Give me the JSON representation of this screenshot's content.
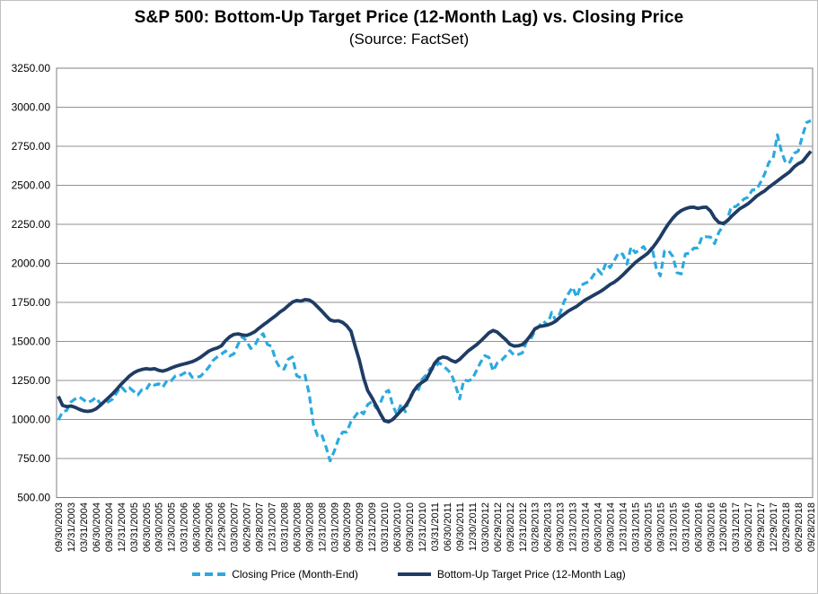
{
  "colors": {
    "closing_price": "#2BA9E0",
    "target_price": "#1F3C64",
    "gridline": "#929292",
    "plot_border": "#7f7f7f",
    "text": "#000000",
    "frame_border": "#bfbfbf"
  },
  "chart_data": {
    "type": "line",
    "title": "S&P 500: Bottom-Up Target Price (12-Month Lag) vs. Closing Price",
    "subtitle": "(Source: FactSet)",
    "grid": "horizontal",
    "legend_position": "bottom",
    "x_axis": {
      "frequency": "monthly",
      "start": "09/30/2003",
      "end": "09/28/2018",
      "points_per_tick": 3,
      "tick_labels": [
        "09/30/2003",
        "12/31/2003",
        "03/31/2004",
        "06/30/2004",
        "09/30/2004",
        "12/31/2004",
        "03/31/2005",
        "06/30/2005",
        "09/30/2005",
        "12/30/2005",
        "03/31/2006",
        "06/30/2006",
        "09/29/2006",
        "12/29/2006",
        "03/30/2007",
        "06/29/2007",
        "09/28/2007",
        "12/31/2007",
        "03/31/2008",
        "06/30/2008",
        "09/30/2008",
        "12/31/2008",
        "03/31/2009",
        "06/30/2009",
        "09/30/2009",
        "12/31/2009",
        "03/31/2010",
        "06/30/2010",
        "09/30/2010",
        "12/31/2010",
        "03/31/2011",
        "06/30/2011",
        "09/30/2011",
        "12/30/2011",
        "03/30/2012",
        "06/29/2012",
        "09/28/2012",
        "12/31/2012",
        "03/28/2013",
        "06/28/2013",
        "09/30/2013",
        "12/31/2013",
        "03/31/2014",
        "06/30/2014",
        "09/30/2014",
        "12/31/2014",
        "03/31/2015",
        "06/30/2015",
        "09/30/2015",
        "12/31/2015",
        "03/31/2016",
        "06/30/2016",
        "09/30/2016",
        "12/30/2016",
        "03/31/2017",
        "06/30/2017",
        "09/29/2017",
        "12/29/2017",
        "03/29/2018",
        "06/29/2018",
        "09/28/2018"
      ]
    },
    "y_axis": {
      "min": 500,
      "max": 3250,
      "step": 250,
      "tick_labels": [
        "3250.00",
        "3000.00",
        "2750.00",
        "2500.00",
        "2250.00",
        "2000.00",
        "1750.00",
        "1500.00",
        "1250.00",
        "1000.00",
        "750.00",
        "500.00"
      ]
    },
    "series": [
      {
        "name": "Closing Price (Month-End)",
        "style": "dashed",
        "color": "#2BA9E0",
        "values": [
          995.97,
          1050.71,
          1058.2,
          1111.92,
          1131.13,
          1144.94,
          1126.21,
          1107.3,
          1120.68,
          1140.84,
          1101.72,
          1104.24,
          1114.58,
          1130.2,
          1173.82,
          1211.92,
          1181.27,
          1203.6,
          1180.59,
          1156.85,
          1191.5,
          1191.33,
          1234.18,
          1220.33,
          1228.81,
          1207.01,
          1249.48,
          1248.29,
          1280.08,
          1280.66,
          1294.87,
          1310.61,
          1270.09,
          1270.2,
          1276.66,
          1303.82,
          1335.85,
          1377.94,
          1400.63,
          1418.3,
          1438.24,
          1406.82,
          1420.86,
          1482.37,
          1530.62,
          1503.35,
          1455.27,
          1473.99,
          1526.75,
          1549.38,
          1481.14,
          1468.36,
          1378.55,
          1330.63,
          1322.7,
          1385.59,
          1400.38,
          1280.0,
          1267.38,
          1282.83,
          1166.36,
          968.75,
          896.24,
          903.25,
          825.88,
          735.09,
          797.87,
          872.81,
          919.14,
          919.32,
          987.48,
          1020.62,
          1057.08,
          1036.19,
          1095.63,
          1115.1,
          1073.87,
          1104.49,
          1169.43,
          1186.69,
          1089.41,
          1030.71,
          1101.6,
          1049.33,
          1141.2,
          1183.26,
          1180.55,
          1257.64,
          1286.12,
          1327.22,
          1325.83,
          1363.61,
          1345.2,
          1320.64,
          1292.28,
          1218.89,
          1131.42,
          1253.3,
          1246.96,
          1257.6,
          1312.41,
          1365.68,
          1408.47,
          1397.91,
          1310.33,
          1362.16,
          1379.32,
          1406.58,
          1440.67,
          1412.16,
          1416.18,
          1426.19,
          1498.11,
          1514.68,
          1569.19,
          1597.57,
          1630.74,
          1606.28,
          1685.73,
          1632.97,
          1681.55,
          1756.54,
          1805.81,
          1848.36,
          1782.59,
          1859.45,
          1872.34,
          1883.95,
          1923.57,
          1960.23,
          1930.67,
          2003.37,
          1972.29,
          2018.05,
          2067.56,
          2058.9,
          1994.99,
          2104.5,
          2067.89,
          2085.51,
          2107.39,
          2063.11,
          2103.84,
          1972.18,
          1920.03,
          2079.36,
          2080.41,
          2043.94,
          1940.24,
          1932.23,
          2059.74,
          2065.3,
          2096.95,
          2098.86,
          2173.6,
          2170.95,
          2168.27,
          2126.15,
          2198.81,
          2238.83,
          2278.87,
          2363.64,
          2362.72,
          2384.2,
          2411.8,
          2423.41,
          2470.3,
          2471.65,
          2519.36,
          2575.26,
          2647.58,
          2673.61,
          2823.81,
          2713.83,
          2640.87,
          2648.05,
          2705.27,
          2718.37,
          2816.29,
          2901.52,
          2913.98
        ]
      },
      {
        "name": "Bottom-Up Target Price (12-Month Lag)",
        "style": "solid",
        "color": "#1F3C64",
        "values": [
          1148,
          1090,
          1082,
          1086,
          1078,
          1065,
          1055,
          1052,
          1056,
          1068,
          1090,
          1115,
          1140,
          1165,
          1195,
          1225,
          1252,
          1278,
          1298,
          1312,
          1320,
          1325,
          1322,
          1325,
          1315,
          1310,
          1318,
          1330,
          1340,
          1348,
          1355,
          1362,
          1370,
          1382,
          1398,
          1418,
          1438,
          1450,
          1458,
          1472,
          1505,
          1530,
          1545,
          1548,
          1542,
          1538,
          1548,
          1562,
          1585,
          1605,
          1625,
          1645,
          1665,
          1688,
          1706,
          1730,
          1752,
          1762,
          1758,
          1768,
          1765,
          1748,
          1722,
          1695,
          1665,
          1638,
          1630,
          1632,
          1622,
          1600,
          1565,
          1470,
          1380,
          1268,
          1185,
          1140,
          1090,
          1038,
          992,
          985,
          1000,
          1028,
          1058,
          1085,
          1128,
          1182,
          1218,
          1238,
          1255,
          1305,
          1360,
          1390,
          1400,
          1395,
          1378,
          1368,
          1385,
          1412,
          1438,
          1458,
          1478,
          1502,
          1528,
          1555,
          1570,
          1560,
          1535,
          1512,
          1482,
          1470,
          1472,
          1480,
          1505,
          1540,
          1580,
          1595,
          1600,
          1605,
          1615,
          1630,
          1655,
          1675,
          1695,
          1710,
          1725,
          1745,
          1765,
          1780,
          1795,
          1810,
          1825,
          1845,
          1865,
          1880,
          1900,
          1925,
          1952,
          1978,
          2005,
          2025,
          2045,
          2065,
          2095,
          2130,
          2170,
          2215,
          2255,
          2290,
          2318,
          2338,
          2350,
          2358,
          2360,
          2352,
          2358,
          2360,
          2335,
          2290,
          2262,
          2255,
          2272,
          2300,
          2325,
          2350,
          2365,
          2382,
          2405,
          2430,
          2448,
          2465,
          2488,
          2508,
          2528,
          2548,
          2568,
          2588,
          2618,
          2638,
          2652,
          2685,
          2718
        ]
      }
    ]
  }
}
